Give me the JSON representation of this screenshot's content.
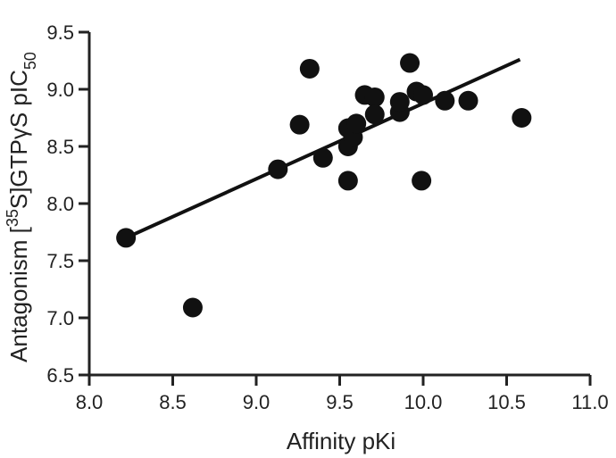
{
  "chart_data": {
    "type": "scatter",
    "title": "",
    "xlabel": "Affinity pKi",
    "ylabel": {
      "text": "Antagonism [35S]GTPγS pIC50",
      "prefix": "Antagonism [",
      "sup": "35",
      "middle": "S]GTPγS pIC",
      "sub": "50"
    },
    "xlim": [
      8.0,
      11.0
    ],
    "ylim": [
      6.5,
      9.5
    ],
    "x_ticks": [
      "8.0",
      "8.5",
      "9.0",
      "9.5",
      "10.0",
      "10.5",
      "11.0"
    ],
    "y_ticks": [
      "6.5",
      "7.0",
      "7.5",
      "8.0",
      "8.5",
      "9.0",
      "9.5"
    ],
    "grid": false,
    "legend": "none",
    "colors": {
      "points": "#111111",
      "fit_line": "#111111",
      "axes": "#222222"
    },
    "fit_line": {
      "x": [
        8.22,
        10.58
      ],
      "y": [
        7.7,
        9.26
      ]
    },
    "points": [
      {
        "x": 8.22,
        "y": 7.7
      },
      {
        "x": 8.62,
        "y": 7.09
      },
      {
        "x": 9.13,
        "y": 8.3
      },
      {
        "x": 9.26,
        "y": 8.69
      },
      {
        "x": 9.32,
        "y": 9.18
      },
      {
        "x": 9.4,
        "y": 8.4
      },
      {
        "x": 9.55,
        "y": 8.2
      },
      {
        "x": 9.55,
        "y": 8.5
      },
      {
        "x": 9.55,
        "y": 8.66
      },
      {
        "x": 9.58,
        "y": 8.58
      },
      {
        "x": 9.6,
        "y": 8.7
      },
      {
        "x": 9.65,
        "y": 8.95
      },
      {
        "x": 9.71,
        "y": 8.93
      },
      {
        "x": 9.71,
        "y": 8.78
      },
      {
        "x": 9.86,
        "y": 8.8
      },
      {
        "x": 9.86,
        "y": 8.89
      },
      {
        "x": 9.92,
        "y": 9.23
      },
      {
        "x": 9.96,
        "y": 8.98
      },
      {
        "x": 10.0,
        "y": 8.95
      },
      {
        "x": 9.99,
        "y": 8.2
      },
      {
        "x": 10.13,
        "y": 8.9
      },
      {
        "x": 10.27,
        "y": 8.9
      },
      {
        "x": 10.59,
        "y": 8.75
      }
    ]
  }
}
